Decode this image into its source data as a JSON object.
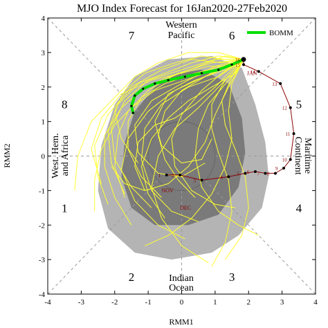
{
  "chart_data": {
    "type": "line",
    "title": "MJO Index Forecast for 16Jan2020-27Feb2020",
    "xlabel": "RMM1",
    "ylabel": "RMM2",
    "xlim": [
      -4,
      4
    ],
    "ylim": [
      -4,
      4
    ],
    "xticks": [
      "-4",
      "-3",
      "-2",
      "-1",
      "0",
      "1",
      "2",
      "3",
      "4"
    ],
    "yticks": [
      "-4",
      "-3",
      "-2",
      "-1",
      "0",
      "1",
      "2",
      "3",
      "4"
    ],
    "grid": false,
    "legend": {
      "placement": "top-right",
      "entries": [
        {
          "name": "BOMM",
          "color": "#00e000"
        }
      ]
    },
    "phases": [
      {
        "label": "1",
        "x": -3.5,
        "y": -1.5
      },
      {
        "label": "2",
        "x": -1.5,
        "y": -3.5
      },
      {
        "label": "3",
        "x": 1.5,
        "y": -3.5
      },
      {
        "label": "4",
        "x": 3.5,
        "y": -1.5
      },
      {
        "label": "5",
        "x": 3.5,
        "y": 1.5
      },
      {
        "label": "6",
        "x": 1.5,
        "y": 3.5
      },
      {
        "label": "7",
        "x": -1.5,
        "y": 3.5
      },
      {
        "label": "8",
        "x": -3.5,
        "y": 1.5
      }
    ],
    "regions": {
      "top": [
        "Western",
        "Pacific"
      ],
      "bottom": [
        "Indian",
        "Ocean"
      ],
      "left": [
        "West. Hem.",
        "and Africa"
      ],
      "right": [
        "Maritime",
        "Continent"
      ]
    },
    "month_labels": [
      {
        "text": "JAN",
        "x": 1.95,
        "y": 2.35,
        "color": "#8b0000"
      },
      {
        "text": "DEC",
        "x": -0.05,
        "y": -1.55,
        "color": "#4b0082"
      },
      {
        "text": "NOV",
        "x": -0.6,
        "y": -1.05,
        "color": "#8b0000"
      }
    ],
    "observed": {
      "color": "#8b0000",
      "points": [
        {
          "day": "1",
          "x": -0.45,
          "y": -0.55
        },
        {
          "day": "2",
          "x": -0.05,
          "y": -0.55
        },
        {
          "day": "3",
          "x": 0.6,
          "y": -0.7
        },
        {
          "day": "4",
          "x": 1.4,
          "y": -0.6
        },
        {
          "day": "5",
          "x": 1.9,
          "y": -0.5
        },
        {
          "day": "6",
          "x": 2.2,
          "y": -0.45
        },
        {
          "day": "7",
          "x": 2.5,
          "y": -0.5
        },
        {
          "day": "8",
          "x": 2.8,
          "y": -0.5
        },
        {
          "day": "9",
          "x": 3.05,
          "y": -0.35
        },
        {
          "day": "10",
          "x": 3.25,
          "y": -0.1
        },
        {
          "day": "11",
          "x": 3.35,
          "y": 0.65
        },
        {
          "day": "12",
          "x": 3.25,
          "y": 1.4
        },
        {
          "day": "13",
          "x": 2.95,
          "y": 2.1
        },
        {
          "day": "14",
          "x": 2.3,
          "y": 2.45
        },
        {
          "day": "15",
          "x": 1.85,
          "y": 2.65
        },
        {
          "day": "16",
          "x": 1.85,
          "y": 2.8
        }
      ]
    },
    "bomm_forecast": {
      "name": "BOMM",
      "color": "#00e000",
      "points": [
        [
          1.85,
          2.8
        ],
        [
          1.5,
          2.65
        ],
        [
          1.1,
          2.5
        ],
        [
          0.6,
          2.4
        ],
        [
          0.1,
          2.3
        ],
        [
          -0.4,
          2.2
        ],
        [
          -0.8,
          2.1
        ],
        [
          -1.15,
          1.95
        ],
        [
          -1.4,
          1.75
        ],
        [
          -1.5,
          1.45
        ],
        [
          -1.45,
          1.25
        ]
      ]
    },
    "ensemble": {
      "color": "#ffff33",
      "members": [
        [
          [
            1.85,
            2.8
          ],
          [
            1.3,
            2.9
          ],
          [
            0.5,
            2.6
          ],
          [
            -0.3,
            2.3
          ],
          [
            -1.0,
            1.9
          ],
          [
            -1.6,
            1.3
          ],
          [
            -1.9,
            0.6
          ],
          [
            -2.0,
            -0.3
          ],
          [
            -1.7,
            -1.2
          ]
        ],
        [
          [
            1.85,
            2.8
          ],
          [
            1.6,
            2.4
          ],
          [
            0.9,
            2.0
          ],
          [
            0.2,
            1.6
          ],
          [
            -0.4,
            1.1
          ],
          [
            -0.9,
            0.5
          ],
          [
            -1.2,
            -0.3
          ],
          [
            -1.0,
            -1.1
          ],
          [
            -0.5,
            -1.8
          ]
        ],
        [
          [
            1.85,
            2.8
          ],
          [
            1.2,
            2.7
          ],
          [
            0.3,
            2.8
          ],
          [
            -0.6,
            2.5
          ],
          [
            -1.5,
            2.0
          ],
          [
            -2.2,
            1.2
          ],
          [
            -2.6,
            0.3
          ],
          [
            -2.5,
            -0.6
          ],
          [
            -2.2,
            -1.4
          ]
        ],
        [
          [
            1.85,
            2.8
          ],
          [
            1.4,
            2.2
          ],
          [
            0.8,
            1.5
          ],
          [
            0.5,
            0.8
          ],
          [
            0.4,
            0.0
          ],
          [
            0.6,
            -0.9
          ],
          [
            1.1,
            -1.6
          ],
          [
            1.7,
            -2.0
          ],
          [
            2.3,
            -2.3
          ]
        ],
        [
          [
            1.85,
            2.8
          ],
          [
            1.0,
            2.6
          ],
          [
            0.0,
            2.1
          ],
          [
            -0.9,
            1.6
          ],
          [
            -1.4,
            0.9
          ],
          [
            -1.3,
            0.1
          ],
          [
            -0.7,
            -0.5
          ],
          [
            0.0,
            -0.6
          ],
          [
            0.7,
            -0.2
          ]
        ],
        [
          [
            1.85,
            2.8
          ],
          [
            1.1,
            3.0
          ],
          [
            0.2,
            3.0
          ],
          [
            -0.7,
            2.7
          ],
          [
            -1.4,
            2.3
          ],
          [
            -2.0,
            1.7
          ],
          [
            -2.7,
            1.0
          ],
          [
            -3.1,
            0.0
          ],
          [
            -3.2,
            -1.0
          ]
        ],
        [
          [
            1.85,
            2.8
          ],
          [
            1.5,
            2.3
          ],
          [
            1.2,
            1.6
          ],
          [
            1.3,
            0.9
          ],
          [
            1.6,
            0.2
          ],
          [
            1.9,
            -0.6
          ],
          [
            2.0,
            -1.5
          ],
          [
            1.8,
            -2.3
          ],
          [
            1.3,
            -3.0
          ]
        ],
        [
          [
            1.85,
            2.8
          ],
          [
            0.9,
            2.4
          ],
          [
            -0.2,
            1.9
          ],
          [
            -1.0,
            1.3
          ],
          [
            -1.6,
            0.5
          ],
          [
            -1.8,
            -0.4
          ],
          [
            -1.4,
            -1.3
          ],
          [
            -0.7,
            -2.0
          ],
          [
            0.1,
            -2.4
          ]
        ],
        [
          [
            1.85,
            2.8
          ],
          [
            1.3,
            2.5
          ],
          [
            0.4,
            2.2
          ],
          [
            -0.4,
            1.8
          ],
          [
            -0.8,
            1.0
          ],
          [
            -0.6,
            0.3
          ],
          [
            0.0,
            -0.2
          ],
          [
            0.6,
            -0.1
          ],
          [
            0.9,
            0.5
          ]
        ],
        [
          [
            1.85,
            2.8
          ],
          [
            1.6,
            2.6
          ],
          [
            0.8,
            2.6
          ],
          [
            0.0,
            2.4
          ],
          [
            -0.9,
            2.2
          ],
          [
            -1.8,
            1.8
          ],
          [
            -2.4,
            1.1
          ],
          [
            -2.7,
            0.2
          ],
          [
            -2.4,
            -0.8
          ]
        ],
        [
          [
            1.85,
            2.8
          ],
          [
            1.2,
            2.1
          ],
          [
            0.5,
            1.4
          ],
          [
            -0.2,
            0.8
          ],
          [
            -0.7,
            0.0
          ],
          [
            -0.9,
            -0.9
          ],
          [
            -0.6,
            -1.8
          ],
          [
            0.0,
            -2.6
          ],
          [
            0.8,
            -3.1
          ]
        ],
        [
          [
            1.85,
            2.8
          ],
          [
            1.0,
            2.8
          ],
          [
            0.0,
            2.5
          ],
          [
            -1.0,
            2.2
          ],
          [
            -1.7,
            1.6
          ],
          [
            -2.1,
            0.8
          ],
          [
            -2.0,
            -0.1
          ],
          [
            -1.5,
            -0.9
          ],
          [
            -0.9,
            -1.5
          ]
        ],
        [
          [
            1.85,
            2.8
          ],
          [
            1.4,
            2.0
          ],
          [
            1.0,
            1.2
          ],
          [
            0.7,
            0.4
          ],
          [
            0.2,
            -0.3
          ],
          [
            -0.4,
            -0.8
          ],
          [
            -1.1,
            -1.0
          ],
          [
            -1.7,
            -0.8
          ],
          [
            -2.1,
            -0.3
          ]
        ],
        [
          [
            1.85,
            2.8
          ],
          [
            1.1,
            2.3
          ],
          [
            0.2,
            2.0
          ],
          [
            -0.6,
            1.5
          ],
          [
            -1.1,
            0.8
          ],
          [
            -1.2,
            -0.1
          ],
          [
            -0.9,
            -1.0
          ],
          [
            -0.3,
            -1.6
          ],
          [
            0.5,
            -1.9
          ]
        ],
        [
          [
            1.85,
            2.8
          ],
          [
            1.3,
            2.8
          ],
          [
            0.6,
            2.9
          ],
          [
            -0.2,
            2.7
          ],
          [
            -1.1,
            2.4
          ],
          [
            -1.7,
            1.9
          ],
          [
            -2.0,
            1.3
          ],
          [
            -1.8,
            0.5
          ],
          [
            -1.3,
            -0.2
          ]
        ],
        [
          [
            1.85,
            2.8
          ],
          [
            1.5,
            2.1
          ],
          [
            1.4,
            1.3
          ],
          [
            1.5,
            0.5
          ],
          [
            1.3,
            -0.3
          ],
          [
            0.9,
            -1.1
          ],
          [
            0.3,
            -1.8
          ],
          [
            -0.4,
            -2.3
          ],
          [
            -1.1,
            -2.6
          ]
        ],
        [
          [
            1.85,
            2.8
          ],
          [
            0.9,
            2.7
          ],
          [
            -0.1,
            2.4
          ],
          [
            -1.1,
            2.0
          ],
          [
            -1.8,
            1.4
          ],
          [
            -2.3,
            0.6
          ],
          [
            -2.3,
            -0.3
          ],
          [
            -2.0,
            -1.2
          ],
          [
            -1.5,
            -2.0
          ]
        ],
        [
          [
            1.85,
            2.8
          ],
          [
            1.2,
            2.4
          ],
          [
            0.6,
            1.9
          ],
          [
            0.0,
            1.2
          ],
          [
            -0.3,
            0.5
          ],
          [
            -0.2,
            -0.3
          ],
          [
            0.3,
            -1.0
          ],
          [
            1.0,
            -1.4
          ],
          [
            1.6,
            -1.5
          ]
        ],
        [
          [
            1.85,
            2.8
          ],
          [
            1.0,
            2.5
          ],
          [
            0.1,
            2.2
          ],
          [
            -0.8,
            1.9
          ],
          [
            -1.5,
            1.4
          ],
          [
            -2.0,
            0.9
          ],
          [
            -2.4,
            0.2
          ],
          [
            -2.6,
            -0.7
          ],
          [
            -2.6,
            -1.6
          ]
        ],
        [
          [
            1.85,
            2.8
          ],
          [
            1.4,
            2.6
          ],
          [
            0.7,
            2.3
          ],
          [
            0.0,
            1.9
          ],
          [
            -0.5,
            1.3
          ],
          [
            -0.7,
            0.6
          ],
          [
            -0.5,
            -0.1
          ],
          [
            -0.1,
            -0.7
          ],
          [
            0.4,
            -1.2
          ]
        ],
        [
          [
            1.85,
            2.8
          ],
          [
            1.3,
            2.2
          ],
          [
            0.9,
            1.5
          ],
          [
            0.9,
            0.8
          ],
          [
            1.1,
            0.1
          ],
          [
            1.4,
            -0.7
          ],
          [
            1.5,
            -1.6
          ],
          [
            1.3,
            -2.5
          ],
          [
            0.9,
            -3.2
          ]
        ],
        [
          [
            1.85,
            2.8
          ],
          [
            1.1,
            2.9
          ],
          [
            0.3,
            2.7
          ],
          [
            -0.5,
            2.4
          ],
          [
            -1.3,
            2.1
          ],
          [
            -1.9,
            1.5
          ],
          [
            -2.2,
            0.7
          ],
          [
            -2.1,
            -0.2
          ],
          [
            -1.7,
            -1.1
          ]
        ],
        [
          [
            1.85,
            2.8
          ],
          [
            1.5,
            2.5
          ],
          [
            1.0,
            2.0
          ],
          [
            0.4,
            1.5
          ],
          [
            -0.2,
            1.1
          ],
          [
            -0.8,
            0.9
          ],
          [
            -1.3,
            0.4
          ],
          [
            -1.4,
            -0.3
          ],
          [
            -1.1,
            -1.0
          ]
        ],
        [
          [
            1.85,
            2.8
          ],
          [
            1.2,
            2.6
          ],
          [
            0.4,
            2.4
          ],
          [
            -0.5,
            2.1
          ],
          [
            -1.2,
            1.7
          ],
          [
            -1.6,
            1.0
          ],
          [
            -1.6,
            0.2
          ],
          [
            -1.2,
            -0.6
          ],
          [
            -0.6,
            -1.2
          ]
        ]
      ]
    },
    "uncertainty_shading": {
      "outer_color": "#b4b4b4",
      "inner_color": "#7a7a7a",
      "outer": [
        [
          0.9,
          2.9
        ],
        [
          1.8,
          2.55
        ],
        [
          2.2,
          1.5
        ],
        [
          2.5,
          0.4
        ],
        [
          2.6,
          -0.6
        ],
        [
          2.4,
          -1.5
        ],
        [
          1.7,
          -2.3
        ],
        [
          0.9,
          -2.8
        ],
        [
          -0.3,
          -3.0
        ],
        [
          -1.4,
          -2.8
        ],
        [
          -2.2,
          -2.1
        ],
        [
          -2.5,
          -1.0
        ],
        [
          -2.4,
          0.3
        ],
        [
          -2.0,
          1.5
        ],
        [
          -1.4,
          2.3
        ],
        [
          -0.4,
          2.8
        ]
      ],
      "inner": [
        [
          0.6,
          2.5
        ],
        [
          1.4,
          2.1
        ],
        [
          1.8,
          1.1
        ],
        [
          1.9,
          0.1
        ],
        [
          1.7,
          -0.9
        ],
        [
          1.1,
          -1.7
        ],
        [
          0.2,
          -2.0
        ],
        [
          -0.8,
          -2.0
        ],
        [
          -1.5,
          -1.5
        ],
        [
          -1.8,
          -0.6
        ],
        [
          -1.7,
          0.4
        ],
        [
          -1.4,
          1.3
        ],
        [
          -0.8,
          2.0
        ],
        [
          -0.1,
          2.4
        ]
      ]
    }
  }
}
